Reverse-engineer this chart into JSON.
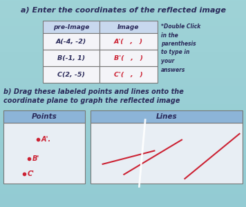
{
  "bg_color": "#9ecfcf",
  "title": "a) Enter the coordinates of the reflected image",
  "title_fontsize": 8.5,
  "table_header": [
    "pre-Image",
    "Image"
  ],
  "pre_image": [
    "A(-4, -2)",
    "B(-1, 1)",
    "C(2, -5)"
  ],
  "image_labels": [
    "A'(   ,   )",
    "B'(   ,   )",
    "C'(   ,   )"
  ],
  "side_note": "*Double Click\nin the\nparenthesis\nto type in\nyour\nanswers",
  "part_b_title": "b) Drag these labeled points and lines onto the\ncoordinate plane to graph the reflected image",
  "points_header": "Points",
  "lines_header": "Lines",
  "point_labels": [
    "A'.",
    "B'",
    "C'"
  ],
  "table_header_color": "#c8d8ee",
  "table_cell_color": "#f4f4f8",
  "box_header_color": "#8cb4d8",
  "box_body_color": "#e8eef4",
  "red_color": "#cc2233",
  "dark_text": "#2a2a5a",
  "line_segs": [
    [
      [
        0.08,
        0.68
      ],
      [
        0.42,
        0.46
      ]
    ],
    [
      [
        0.22,
        0.85
      ],
      [
        0.6,
        0.28
      ]
    ],
    [
      [
        0.62,
        0.92
      ],
      [
        0.98,
        0.18
      ]
    ]
  ],
  "white_line": [
    [
      0.32,
      1.05
    ],
    [
      0.36,
      -0.05
    ]
  ]
}
